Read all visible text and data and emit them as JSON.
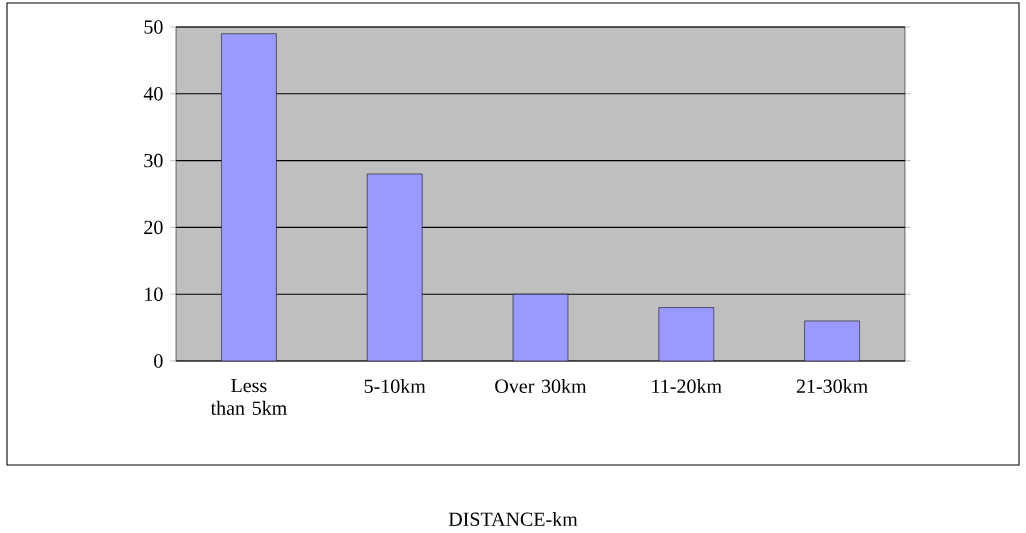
{
  "chart_data": {
    "type": "bar",
    "xlabel": "DISTANCE-km",
    "categories": [
      "Less than 5km",
      "5-10km",
      "Over 30km",
      "11-20km",
      "21-30km"
    ],
    "values": [
      49,
      28,
      10,
      8,
      6
    ],
    "color": "#9999ff",
    "ylim": [
      0,
      50
    ],
    "yticks": [
      0,
      10,
      20,
      30,
      40,
      50
    ],
    "grid": "y"
  }
}
